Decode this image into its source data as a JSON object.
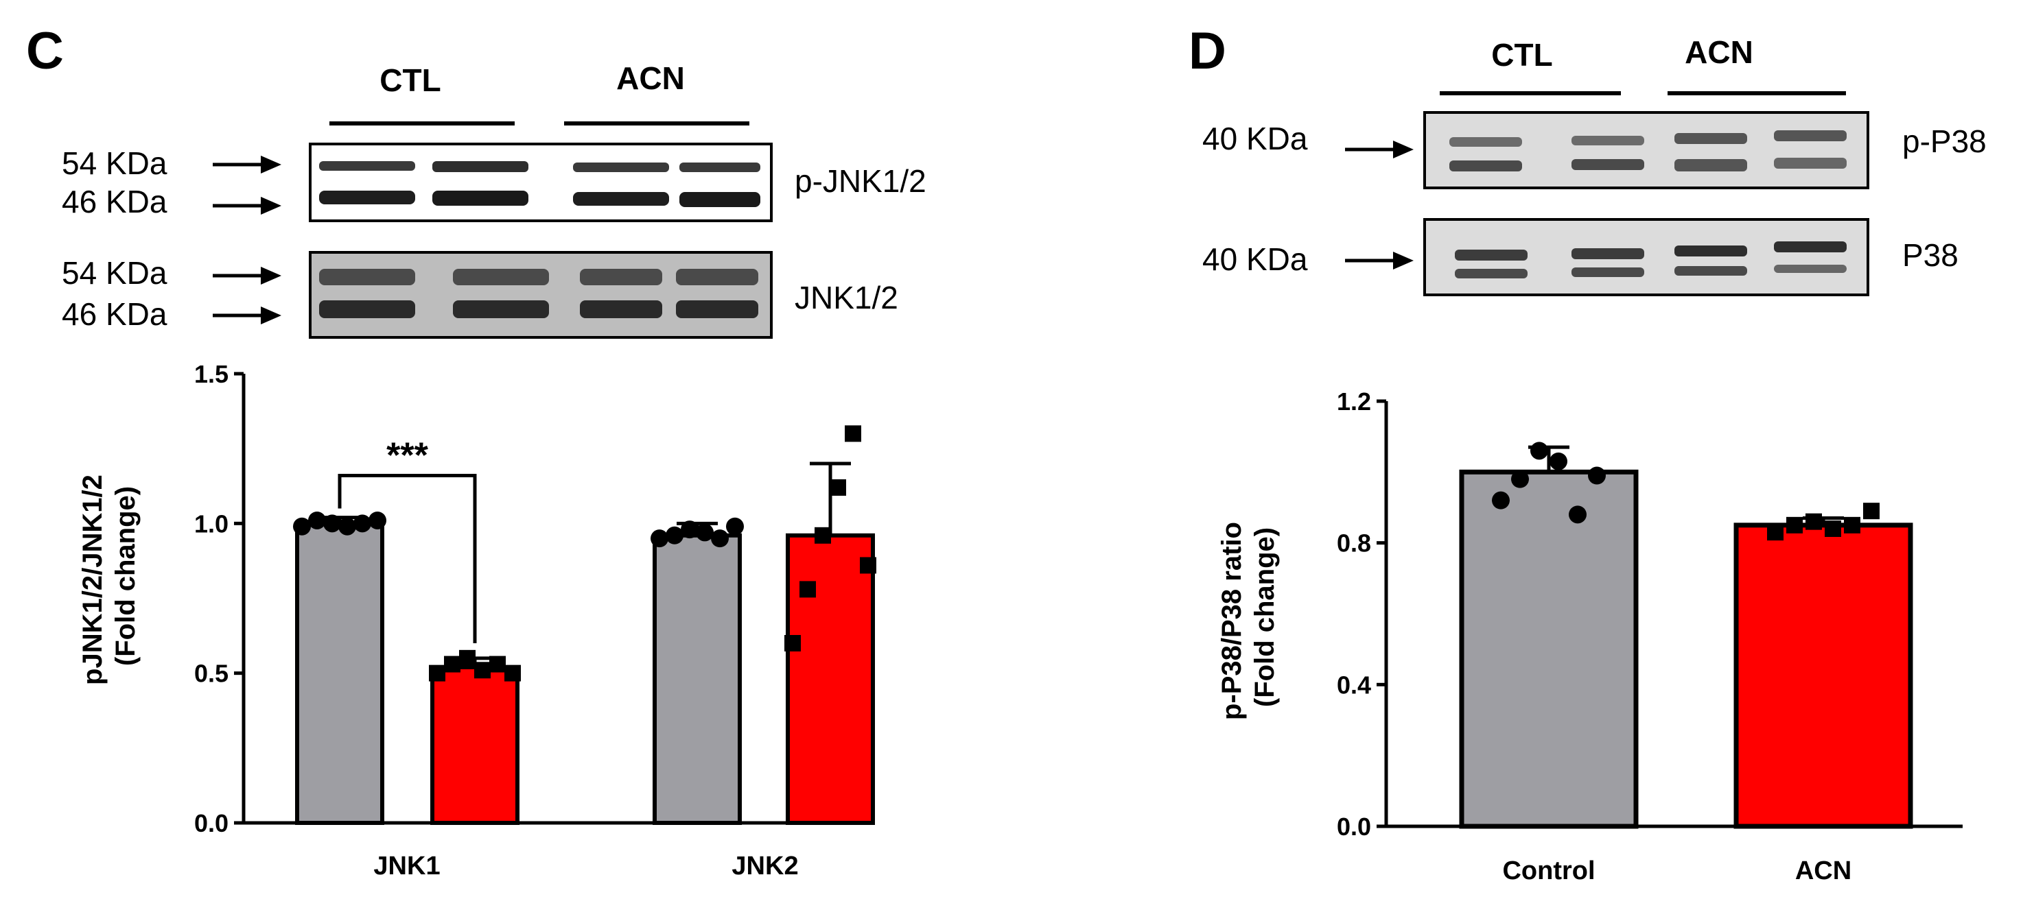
{
  "panels": {
    "C": {
      "label": "C",
      "blot_groups": [
        "CTL",
        "ACN"
      ],
      "blots": [
        {
          "name": "p-JNK1/2",
          "markers": [
            "54 KDa",
            "46 KDa"
          ]
        },
        {
          "name": "JNK1/2",
          "markers": [
            "54 KDa",
            "46 KDa"
          ]
        }
      ]
    },
    "D": {
      "label": "D",
      "blot_groups": [
        "CTL",
        "ACN"
      ],
      "blots": [
        {
          "name": "p-P38",
          "markers": [
            "40 KDa"
          ]
        },
        {
          "name": "P38",
          "markers": [
            "40 KDa"
          ]
        }
      ]
    }
  },
  "colors": {
    "control": "#9e9ea3",
    "acn": "#ff0000",
    "points": "#000000"
  },
  "chart_data": [
    {
      "type": "bar",
      "ylabel": "pJNK1/2/JNK1/2\n(Fold change)",
      "xlabel": "",
      "categories": [
        "JNK1",
        "JNK2"
      ],
      "ylim": [
        0,
        1.5
      ],
      "yticks": [
        "0.0",
        "0.5",
        "1.0",
        "1.5"
      ],
      "series": [
        {
          "color": "#9e9ea3",
          "values": [
            1.0,
            0.96
          ],
          "sd": [
            0.02,
            0.04
          ],
          "points": [
            [
              0.99,
              1.01,
              1.0,
              0.99,
              1.0,
              1.01
            ],
            [
              0.95,
              0.96,
              0.98,
              0.97,
              0.95,
              0.99
            ]
          ],
          "marker": "circle"
        },
        {
          "color": "#ff0000",
          "values": [
            0.52,
            0.96
          ],
          "sd": [
            0.03,
            0.24
          ],
          "points": [
            [
              0.5,
              0.53,
              0.55,
              0.51,
              0.53,
              0.5
            ],
            [
              0.6,
              0.78,
              0.96,
              1.12,
              1.3,
              0.86
            ]
          ],
          "marker": "square"
        }
      ],
      "annotations": [
        {
          "text": "***",
          "between": "JNK1"
        }
      ]
    },
    {
      "type": "bar",
      "ylabel": "p-P38/P38 ratio\n(Fold change)",
      "xlabel": "",
      "categories": [
        "Control",
        "ACN"
      ],
      "ylim": [
        0,
        1.2
      ],
      "yticks": [
        "0.0",
        "0.4",
        "0.8",
        "1.2"
      ],
      "values": [
        1.0,
        0.85
      ],
      "sd": [
        0.07,
        0.02
      ],
      "colors": [
        "#9e9ea3",
        "#ff0000"
      ],
      "points": [
        [
          0.92,
          0.98,
          1.06,
          1.03,
          0.88,
          0.99
        ],
        [
          0.83,
          0.85,
          0.86,
          0.84,
          0.85,
          0.89
        ]
      ],
      "markers": [
        "circle",
        "square"
      ]
    }
  ]
}
